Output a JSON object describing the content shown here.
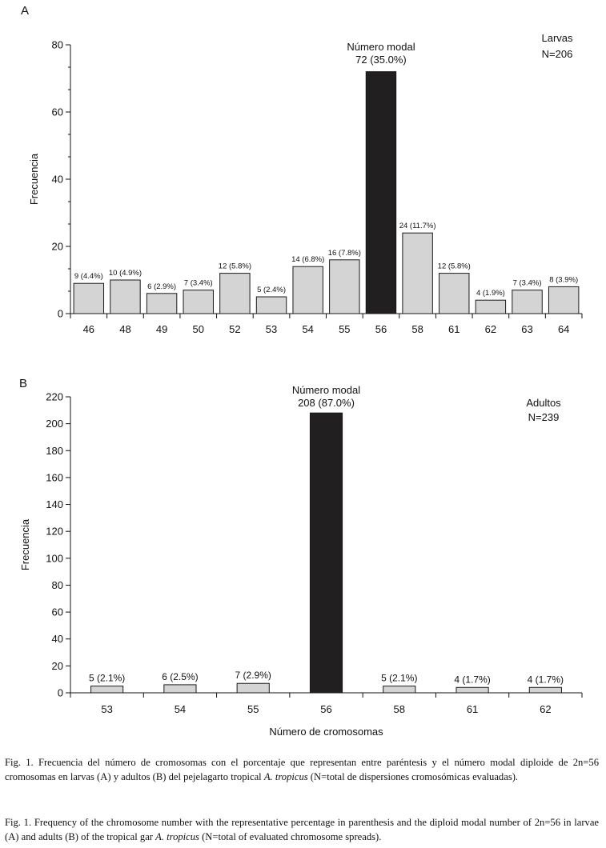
{
  "chart_data": [
    {
      "type": "bar",
      "panel_label": "A",
      "ylabel": "Frecuencia",
      "ylim": [
        0,
        80
      ],
      "yticks": [
        0,
        20,
        40,
        60,
        80
      ],
      "categories": [
        "46",
        "48",
        "49",
        "50",
        "52",
        "53",
        "54",
        "55",
        "56",
        "58",
        "61",
        "62",
        "63",
        "64"
      ],
      "values": [
        9,
        10,
        6,
        7,
        12,
        5,
        14,
        16,
        72,
        24,
        12,
        4,
        7,
        8
      ],
      "labels": [
        "9 (4.4%)",
        "10 (4.9%)",
        "6 (2.9%)",
        "7 (3.4%)",
        "12 (5.8%)",
        "5 (2.4%)",
        "14 (6.8%)",
        "16 (7.8%)",
        "",
        "24 (11.7%)",
        "12 (5.8%)",
        "4 (1.9%)",
        "7 (3.4%)",
        "8 (3.9%)"
      ],
      "modal_index": 8,
      "modal_label_line1": "Número modal",
      "modal_label_line2": "72 (35.0%)",
      "legend_line1": "Larvas",
      "legend_line2": "N=206",
      "bar_color": "#d4d4d4",
      "modal_color": "#221f20"
    },
    {
      "type": "bar",
      "panel_label": "B",
      "ylabel": "Frecuencia",
      "xlabel": "Número de cromosomas",
      "ylim": [
        0,
        220
      ],
      "yticks": [
        0,
        20,
        40,
        60,
        80,
        100,
        120,
        140,
        160,
        180,
        200,
        220
      ],
      "categories": [
        "53",
        "54",
        "55",
        "56",
        "58",
        "61",
        "62"
      ],
      "values": [
        5,
        6,
        7,
        208,
        5,
        4,
        4
      ],
      "labels": [
        "5 (2.1%)",
        "6 (2.5%)",
        "7 (2.9%)",
        "",
        "5 (2.1%)",
        "4 (1.7%)",
        "4 (1.7%)"
      ],
      "modal_index": 3,
      "modal_label_line1": "Número modal",
      "modal_label_line2": "208 (87.0%)",
      "legend_line1": "Adultos",
      "legend_line2": "N=239",
      "bar_color": "#d4d4d4",
      "modal_color": "#221f20"
    }
  ],
  "caption_es": {
    "before": "Fig. 1. Frecuencia del número de cromosomas con el porcentaje que representan entre paréntesis y el número modal diploide de 2n=56 cromosomas en larvas (A) y adultos (B) del pejelagarto tropical ",
    "species": "A. tropicus",
    "after": " (N=total de dispersiones cromosómicas evaluadas)."
  },
  "caption_en": {
    "before": "Fig. 1. Frequency of the chromosome number with the representative percentage in parenthesis and the diploid modal number of 2n=56 in larvae (A) and adults (B) of the tropical gar ",
    "species": "A. tropicus",
    "after": " (N=total of evaluated chromosome spreads)."
  }
}
